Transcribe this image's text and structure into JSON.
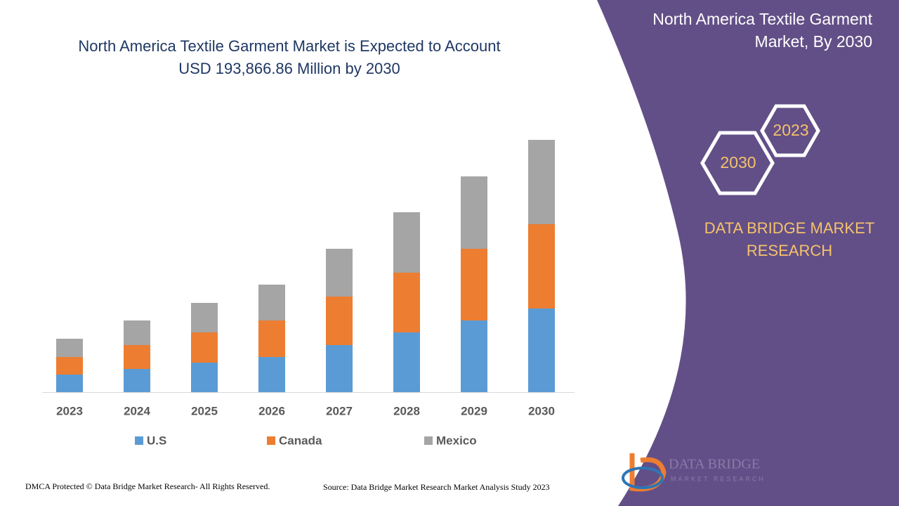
{
  "title_lines": [
    "North America Textile Garment Market is Expected to Account",
    "USD 193,866.86 Million by 2030"
  ],
  "panel": {
    "title_lines": [
      "North America Textile Garment",
      "Market, By 2030"
    ],
    "hex_top": "2023",
    "hex_bottom": "2030",
    "brand_lines": [
      "DATA BRIDGE MARKET",
      "RESEARCH"
    ]
  },
  "logo": {
    "name": "DATA BRIDGE",
    "tagline": "MARKET RESEARCH"
  },
  "footer": {
    "copyright": "DMCA Protected © Data Bridge Market Research- All Rights Reserved.",
    "source": "Source: Data Bridge Market Research Market Analysis Study 2023"
  },
  "chart_data": {
    "type": "stacked_bar",
    "categories": [
      "2023",
      "2024",
      "2025",
      "2026",
      "2027",
      "2028",
      "2029",
      "2030"
    ],
    "series": [
      {
        "name": "U.S",
        "color": "#5b9bd5",
        "values": [
          25,
          33,
          42,
          50,
          67,
          85,
          102,
          119
        ]
      },
      {
        "name": "Canada",
        "color": "#ed7d31",
        "values": [
          25,
          34,
          43,
          52,
          69,
          85,
          102,
          120
        ]
      },
      {
        "name": "Mexico",
        "color": "#a5a5a5",
        "values": [
          26,
          35,
          42,
          51,
          68,
          86,
          103,
          120
        ]
      }
    ],
    "ylim": [
      0,
      360
    ]
  }
}
